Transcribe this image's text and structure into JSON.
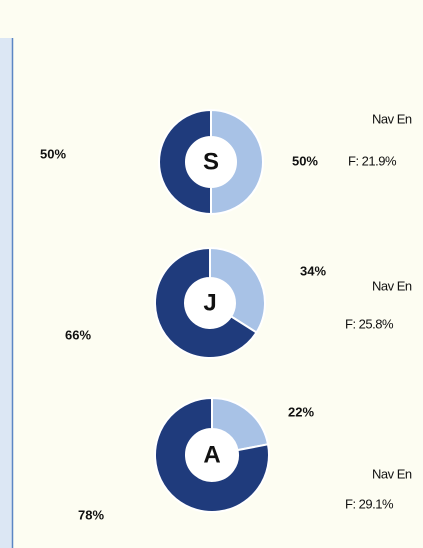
{
  "chart_data": [
    {
      "type": "donut",
      "center_label": "S",
      "values": [
        50,
        50
      ],
      "value_labels": [
        "50%",
        "50%"
      ],
      "colors": [
        "#a8c2e6",
        "#1f3b7c"
      ],
      "annotations": [
        "Nav En",
        "F: 21.9%"
      ]
    },
    {
      "type": "donut",
      "center_label": "J",
      "values": [
        34,
        66
      ],
      "value_labels": [
        "34%",
        "66%"
      ],
      "colors": [
        "#a8c2e6",
        "#1f3b7c"
      ],
      "annotations": [
        "Nav En",
        "F: 25.8%"
      ]
    },
    {
      "type": "donut",
      "center_label": "A",
      "values": [
        22,
        78
      ],
      "value_labels": [
        "22%",
        "78%"
      ],
      "colors": [
        "#a8c2e6",
        "#1f3b7c"
      ],
      "annotations": [
        "Nav En",
        "F: 29.1%"
      ]
    }
  ]
}
